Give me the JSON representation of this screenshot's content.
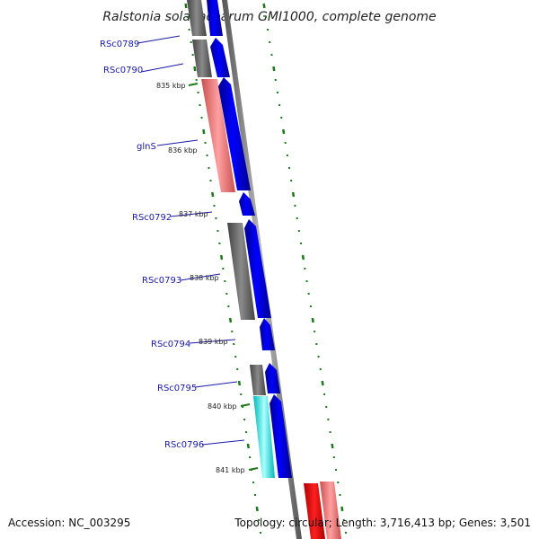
{
  "title": "Ralstonia solanacearum GMI1000, complete genome",
  "footer": {
    "accession": "Accession: NC_003295",
    "summary": "Topology: circular; Length: 3,716,413 bp; Genes: 3,501"
  },
  "genes": [
    {
      "label": "RSc0789"
    },
    {
      "label": "RSc0790"
    },
    {
      "label": "glnS"
    },
    {
      "label": "RSc0792"
    },
    {
      "label": "RSc0793"
    },
    {
      "label": "RSc0794"
    },
    {
      "label": "RSc0795"
    },
    {
      "label": "RSc0796"
    }
  ],
  "kbp_ticks": [
    "835 kbp",
    "836 kbp",
    "837 kbp",
    "838 kbp",
    "839 kbp",
    "840 kbp",
    "841 kbp"
  ],
  "colors": {
    "forward_cds": "#0000ee",
    "gray_feature": "#707070",
    "pink_feature": "#e97777",
    "cyan_feature": "#00e6e6",
    "red_feature": "#ee0000",
    "tick_green": "#1a7a1a",
    "label_blue": "#1a1aa8",
    "backbone": "#888888"
  }
}
